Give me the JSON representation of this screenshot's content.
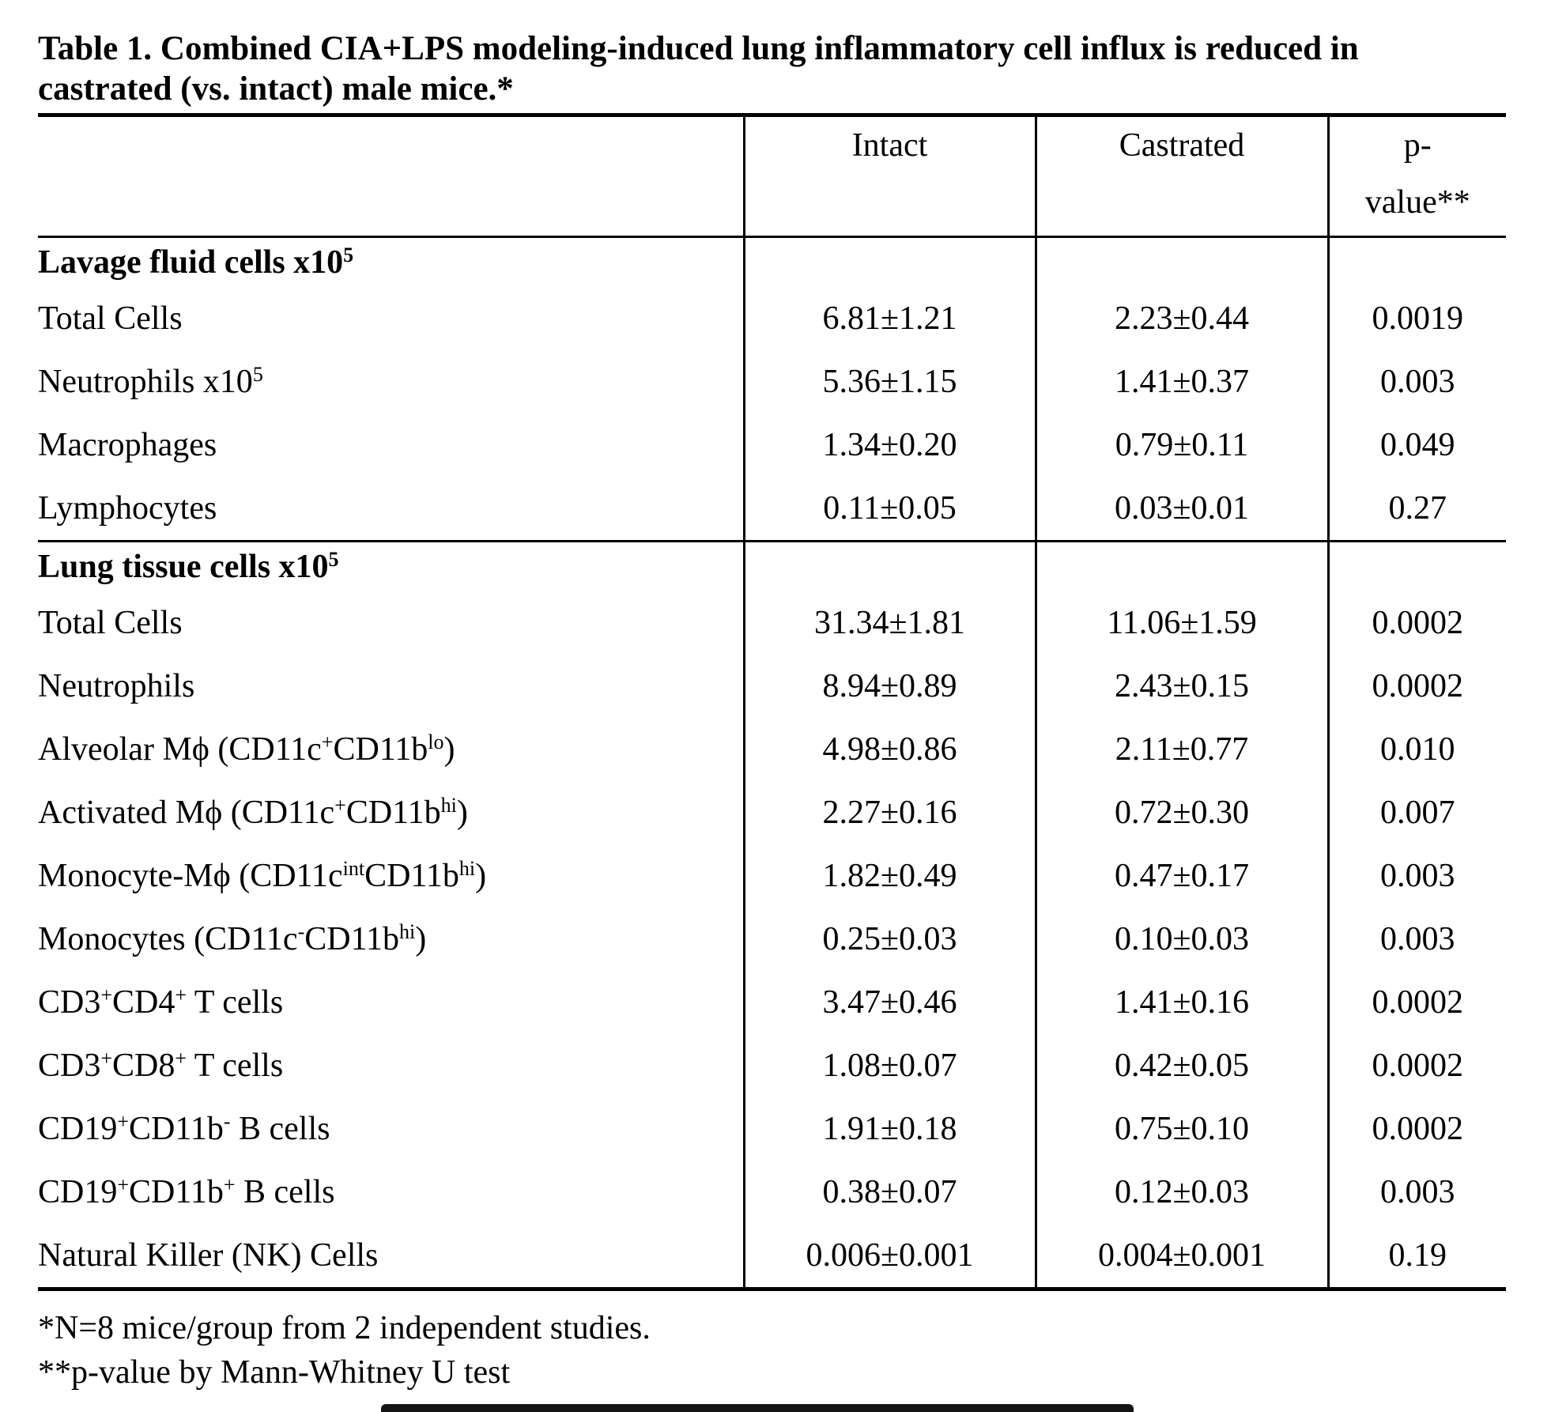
{
  "title": {
    "line1": "Table 1. Combined CIA+LPS modeling-induced lung inflammatory cell influx is reduced in",
    "line2": "castrated (vs. intact) male mice.*"
  },
  "table": {
    "header": {
      "row_label_col": "",
      "intact": "Intact",
      "castrated": "Castrated",
      "p_line1": "p-",
      "p_line2": "value**"
    },
    "sections": [
      {
        "header": [
          "Lavage fluid cells x10",
          {
            "sup": "5"
          }
        ],
        "rows": [
          {
            "label": "Total Cells",
            "intact": "6.81±1.21",
            "castrated": "2.23±0.44",
            "p": "0.0019"
          },
          {
            "label": [
              "Neutrophils x10",
              {
                "sup": "5"
              }
            ],
            "intact": "5.36±1.15",
            "castrated": "1.41±0.37",
            "p": "0.003"
          },
          {
            "label": "Macrophages",
            "intact": "1.34±0.20",
            "castrated": "0.79±0.11",
            "p": "0.049"
          },
          {
            "label": "Lymphocytes",
            "intact": "0.11±0.05",
            "castrated": "0.03±0.01",
            "p": "0.27"
          }
        ]
      },
      {
        "header": [
          "Lung tissue cells x10",
          {
            "sup": "5"
          }
        ],
        "rows": [
          {
            "label": "Total Cells",
            "intact": "31.34±1.81",
            "castrated": "11.06±1.59",
            "p": "0.0002"
          },
          {
            "label": "Neutrophils",
            "intact": "8.94±0.89",
            "castrated": "2.43±0.15",
            "p": "0.0002"
          },
          {
            "label": [
              "Alveolar Mϕ (CD11c",
              {
                "sup": "+"
              },
              "CD11b",
              {
                "sup": "lo"
              },
              ")"
            ],
            "intact": "4.98±0.86",
            "castrated": "2.11±0.77",
            "p": "0.010"
          },
          {
            "label": [
              "Activated Mϕ (CD11c",
              {
                "sup": "+"
              },
              "CD11b",
              {
                "sup": "hi"
              },
              ")"
            ],
            "intact": "2.27±0.16",
            "castrated": "0.72±0.30",
            "p": "0.007"
          },
          {
            "label": [
              "Monocyte-Mϕ (CD11c",
              {
                "sup": "int"
              },
              "CD11b",
              {
                "sup": "hi"
              },
              ")"
            ],
            "intact": "1.82±0.49",
            "castrated": "0.47±0.17",
            "p": "0.003"
          },
          {
            "label": [
              "Monocytes (CD11c",
              {
                "sup": "-"
              },
              "CD11b",
              {
                "sup": "hi"
              },
              ")"
            ],
            "intact": "0.25±0.03",
            "castrated": "0.10±0.03",
            "p": "0.003"
          },
          {
            "label": [
              "CD3",
              {
                "sup": "+"
              },
              "CD4",
              {
                "sup": "+"
              },
              " T cells"
            ],
            "intact": "3.47±0.46",
            "castrated": "1.41±0.16",
            "p": "0.0002"
          },
          {
            "label": [
              "CD3",
              {
                "sup": "+"
              },
              "CD8",
              {
                "sup": "+"
              },
              " T cells"
            ],
            "intact": "1.08±0.07",
            "castrated": "0.42±0.05",
            "p": "0.0002"
          },
          {
            "label": [
              "CD19",
              {
                "sup": "+"
              },
              "CD11b",
              {
                "sup": "-"
              },
              " B cells"
            ],
            "intact": "1.91±0.18",
            "castrated": "0.75±0.10",
            "p": "0.0002"
          },
          {
            "label": [
              "CD19",
              {
                "sup": "+"
              },
              "CD11b",
              {
                "sup": "+"
              },
              " B cells"
            ],
            "intact": "0.38±0.07",
            "castrated": "0.12±0.03",
            "p": "0.003"
          },
          {
            "label": "Natural Killer (NK) Cells",
            "intact": "0.006±0.001",
            "castrated": "0.004±0.001",
            "p": "0.19"
          }
        ]
      }
    ]
  },
  "footnotes": {
    "note1": "*N=8 mice/group from 2 independent studies.",
    "note2": "**p-value by Mann-Whitney U test"
  }
}
